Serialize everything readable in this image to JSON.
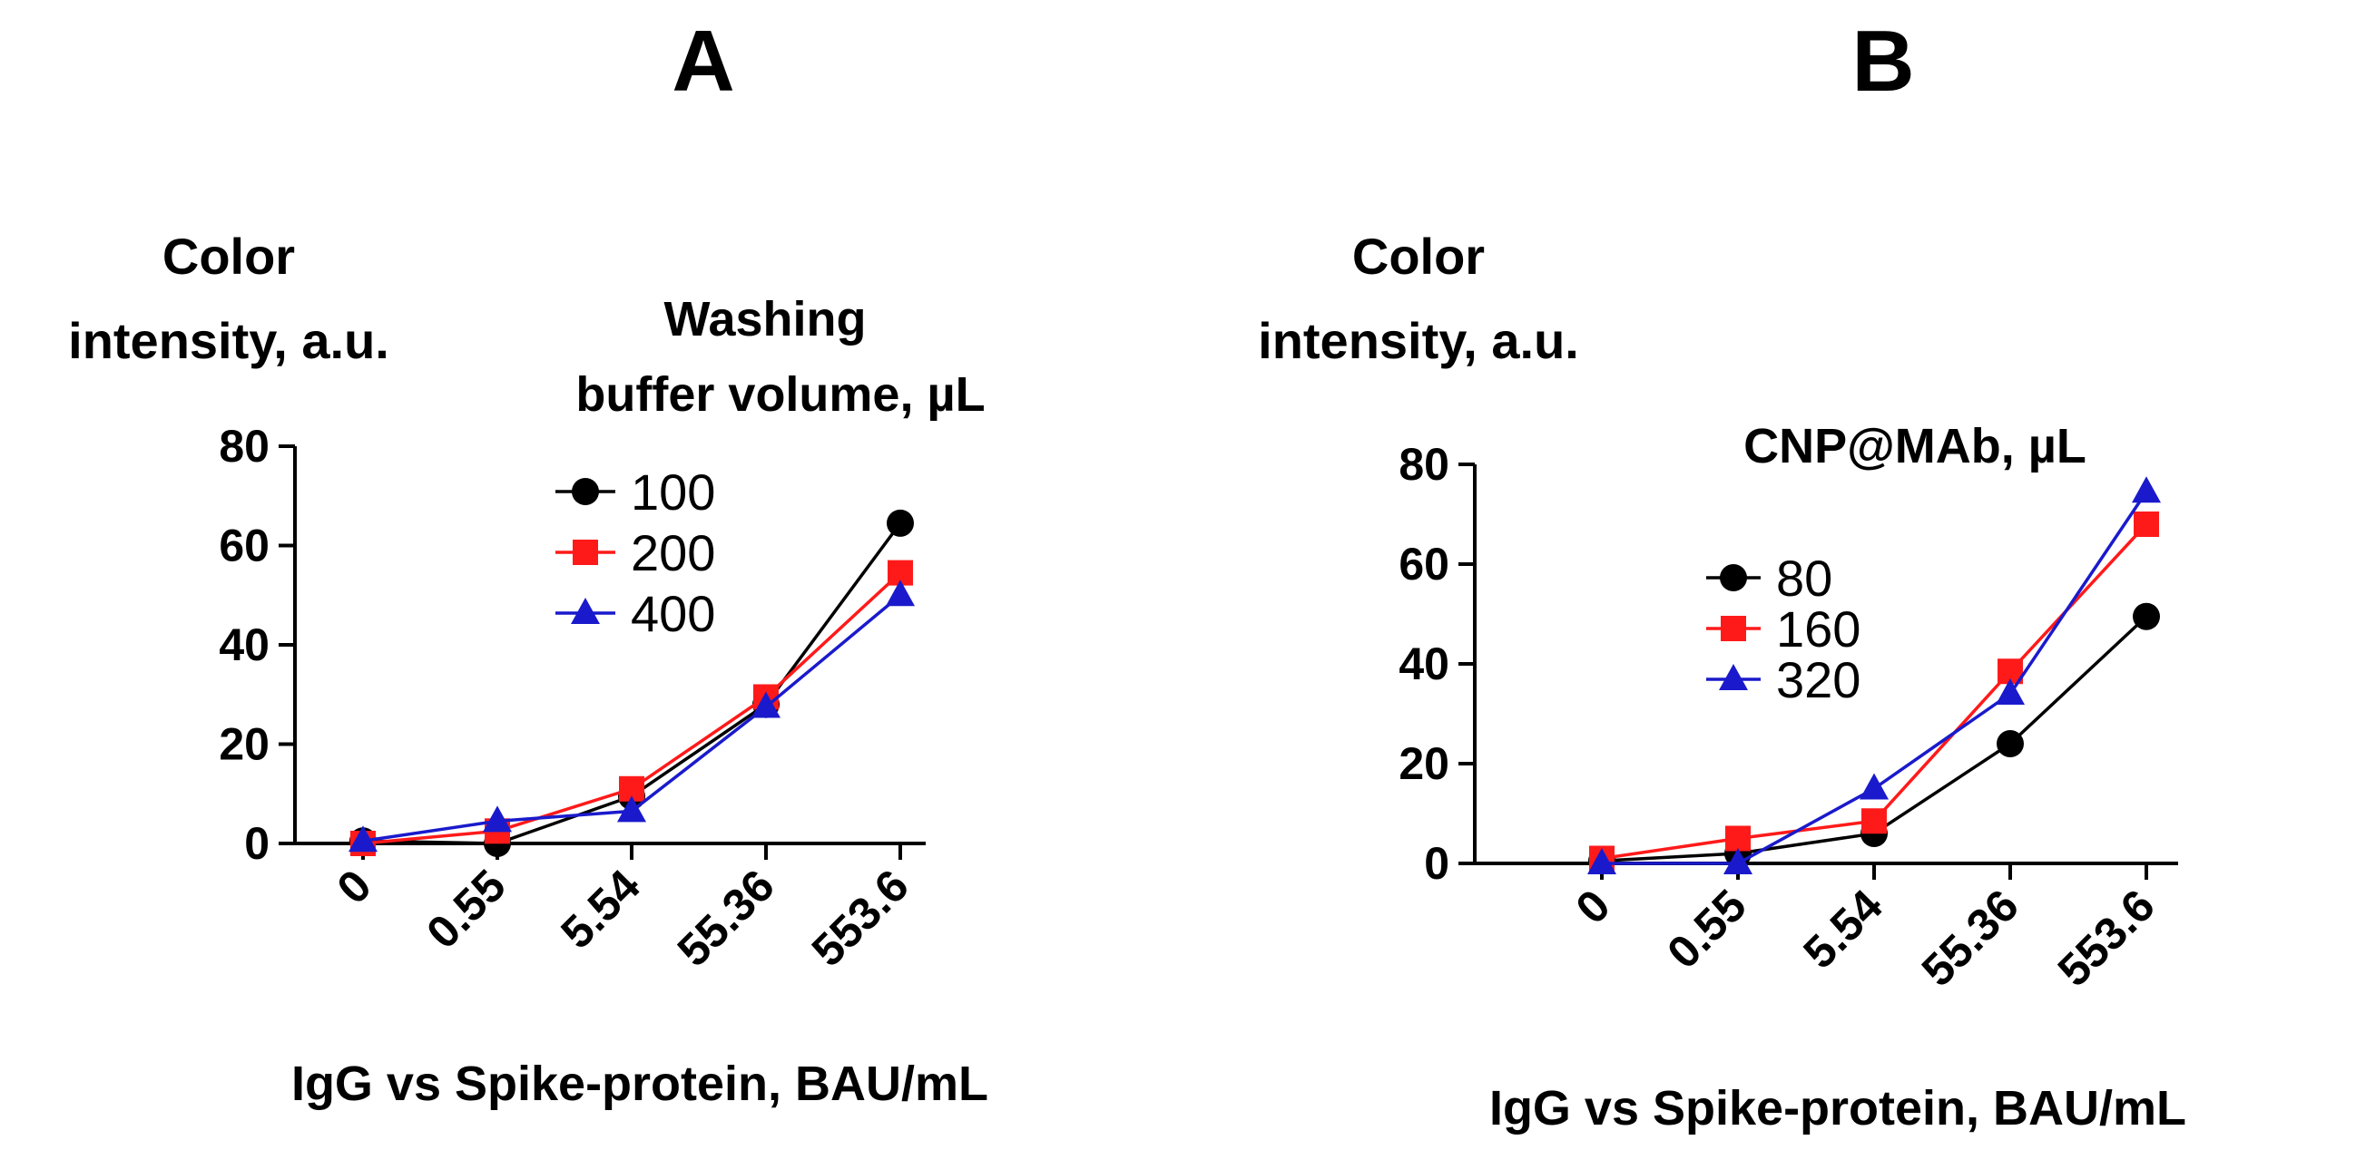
{
  "chart_data": [
    {
      "type": "line",
      "panel_label": "A",
      "title": "",
      "ylabel_lines": [
        "Color",
        "intensity, a.u."
      ],
      "xlabel": "IgG vs Spike-protein, BAU/mL",
      "legend_title_lines": [
        "Washing",
        "buffer volume, µL"
      ],
      "categories": [
        "0",
        "0.55",
        "5.54",
        "55.36",
        "553.6"
      ],
      "yticks": [
        "0",
        "20",
        "40",
        "60",
        "80"
      ],
      "ylim": [
        0,
        80
      ],
      "series": [
        {
          "name": "100",
          "color": "#000000",
          "marker": "circle",
          "values": [
            0.5,
            0,
            9.5,
            28,
            64.5
          ]
        },
        {
          "name": "200",
          "color": "#ff1a1a",
          "marker": "square",
          "values": [
            0,
            2.5,
            11,
            29.5,
            54.5
          ]
        },
        {
          "name": "400",
          "color": "#1a1acc",
          "marker": "triangle",
          "values": [
            0.5,
            4.5,
            6.5,
            27.5,
            50
          ]
        }
      ]
    },
    {
      "type": "line",
      "panel_label": "B",
      "title": "",
      "ylabel_lines": [
        "Color",
        "intensity, a.u."
      ],
      "xlabel": "IgG vs Spike-protein, BAU/mL",
      "legend_title_lines": [
        "CNP@MAb, µL"
      ],
      "categories": [
        "0",
        "0.55",
        "5.54",
        "55.36",
        "553.6"
      ],
      "yticks": [
        "0",
        "20",
        "40",
        "60",
        "80"
      ],
      "ylim": [
        0,
        80
      ],
      "series": [
        {
          "name": "80",
          "color": "#000000",
          "marker": "circle",
          "values": [
            0.5,
            2,
            6,
            24,
            49.5
          ]
        },
        {
          "name": "160",
          "color": "#ff1a1a",
          "marker": "square",
          "values": [
            1,
            5,
            8.5,
            38.5,
            68
          ]
        },
        {
          "name": "320",
          "color": "#1a1acc",
          "marker": "triangle",
          "values": [
            0,
            0,
            15,
            34,
            74.5
          ]
        }
      ]
    }
  ]
}
